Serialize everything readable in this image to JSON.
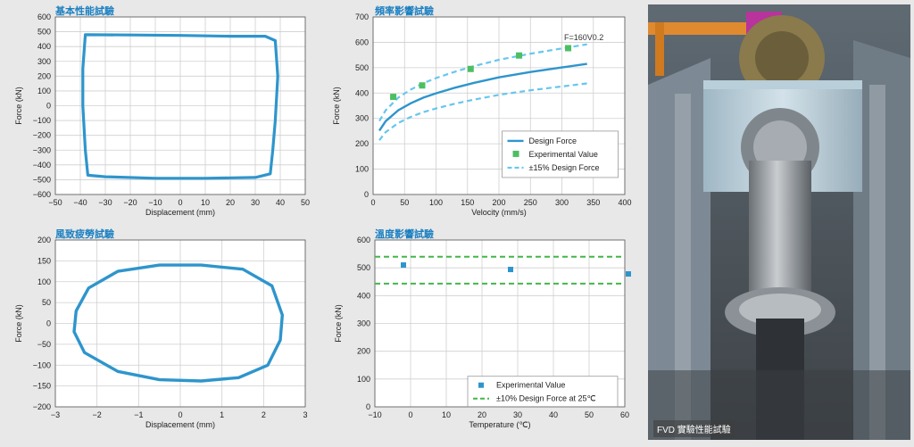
{
  "colors": {
    "line": "#2e95cc",
    "green": "#4cbf63",
    "dash_green": "#43b649",
    "dash_blue": "#66c6ee",
    "title": "#1a7fc1"
  },
  "charts": [
    {
      "title": "基本性能試驗",
      "chart_data": {
        "type": "line",
        "xlabel": "Displacement (mm)",
        "ylabel": "Force (kN)",
        "xlim": [
          -50,
          50
        ],
        "ylim": [
          -600,
          600
        ],
        "xticks": [
          "−50",
          "−40",
          "−30",
          "−20",
          "−10",
          "0",
          "10",
          "20",
          "30",
          "40",
          "50"
        ],
        "yticks": [
          "−600",
          "−500",
          "−400",
          "−300",
          "−200",
          "−100",
          "0",
          "100",
          "200",
          "300",
          "400",
          "500",
          "600"
        ],
        "grid": true,
        "series": [
          {
            "values_xy": [
              [
                -38,
                480
              ],
              [
                -20,
                478
              ],
              [
                0,
                475
              ],
              [
                20,
                470
              ],
              [
                34,
                470
              ],
              [
                38,
                440
              ],
              [
                39,
                200
              ],
              [
                38,
                -100
              ],
              [
                37,
                -300
              ],
              [
                36,
                -460
              ],
              [
                30,
                -485
              ],
              [
                10,
                -490
              ],
              [
                -10,
                -490
              ],
              [
                -30,
                -480
              ],
              [
                -37,
                -470
              ],
              [
                -38,
                -300
              ],
              [
                -39,
                0
              ],
              [
                -39,
                250
              ],
              [
                -38,
                480
              ]
            ]
          }
        ]
      }
    },
    {
      "title": "頻率影響試驗",
      "chart_data": {
        "type": "line",
        "xlabel": "Velocity (mm/s)",
        "ylabel": "Force (kN)",
        "xlim": [
          0,
          400
        ],
        "ylim": [
          0,
          700
        ],
        "xticks": [
          "0",
          "50",
          "100",
          "150",
          "200",
          "250",
          "300",
          "350",
          "400"
        ],
        "yticks": [
          "0",
          "100",
          "200",
          "300",
          "400",
          "500",
          "600",
          "700"
        ],
        "grid": true,
        "annotation": "F=160V0.2",
        "legend": {
          "placement": "bottom-right",
          "items": [
            "Design Force",
            "Experimental Value",
            "±15% Design Force"
          ]
        },
        "design_force": {
          "x": [
            10,
            20,
            40,
            60,
            80,
            100,
            130,
            160,
            200,
            250,
            300,
            340
          ],
          "y": [
            252,
            289,
            332,
            360,
            382,
            399,
            421,
            440,
            462,
            483,
            501,
            515
          ]
        },
        "experimental": {
          "x": [
            32,
            78,
            155,
            232,
            310
          ],
          "y": [
            385,
            430,
            495,
            548,
            577
          ]
        },
        "upper_15": {
          "x": [
            10,
            20,
            40,
            60,
            80,
            100,
            130,
            160,
            200,
            250,
            300,
            340
          ],
          "y": [
            290,
            332,
            382,
            414,
            439,
            459,
            484,
            506,
            531,
            555,
            576,
            592
          ]
        },
        "lower_15": {
          "x": [
            10,
            20,
            40,
            60,
            80,
            100,
            130,
            160,
            200,
            250,
            300,
            340
          ],
          "y": [
            214,
            246,
            282,
            306,
            325,
            339,
            358,
            374,
            393,
            411,
            426,
            438
          ]
        }
      }
    },
    {
      "title": "風致疲勞試驗",
      "chart_data": {
        "type": "line",
        "xlabel": "Displacement (mm)",
        "ylabel": "Force (kN)",
        "xlim": [
          -3,
          3
        ],
        "ylim": [
          -200,
          200
        ],
        "xticks": [
          "−3",
          "−2",
          "−1",
          "0",
          "1",
          "2",
          "3"
        ],
        "yticks": [
          "−200",
          "−150",
          "−100",
          "−50",
          "0",
          "50",
          "100",
          "150",
          "200"
        ],
        "grid": true,
        "series": [
          {
            "values_xy": [
              [
                -2.5,
                30
              ],
              [
                -2.2,
                85
              ],
              [
                -1.5,
                125
              ],
              [
                -0.5,
                140
              ],
              [
                0.5,
                140
              ],
              [
                1.5,
                130
              ],
              [
                2.2,
                90
              ],
              [
                2.45,
                20
              ],
              [
                2.4,
                -40
              ],
              [
                2.1,
                -100
              ],
              [
                1.4,
                -130
              ],
              [
                0.5,
                -138
              ],
              [
                -0.5,
                -135
              ],
              [
                -1.5,
                -115
              ],
              [
                -2.3,
                -70
              ],
              [
                -2.55,
                -20
              ],
              [
                -2.5,
                30
              ]
            ]
          }
        ]
      }
    },
    {
      "title": "溫度影響試驗",
      "chart_data": {
        "type": "scatter",
        "xlabel": "Temperature (℃)",
        "ylabel": "Force (kN)",
        "xlim": [
          -10,
          60
        ],
        "ylim": [
          0,
          600
        ],
        "xticks": [
          "−10",
          "0",
          "10",
          "20",
          "30",
          "40",
          "50",
          "60"
        ],
        "yticks": [
          "0",
          "100",
          "200",
          "300",
          "400",
          "500",
          "600"
        ],
        "grid": true,
        "legend": {
          "placement": "bottom-right",
          "items": [
            "Experimental Value",
            "±10% Design Force at 25℃"
          ]
        },
        "experimental": {
          "x": [
            -2,
            28,
            61
          ],
          "y": [
            510,
            494,
            478
          ]
        },
        "band_upper": 540,
        "band_lower": 443
      }
    }
  ],
  "photo": {
    "caption": "FVD 實驗性能試驗"
  }
}
